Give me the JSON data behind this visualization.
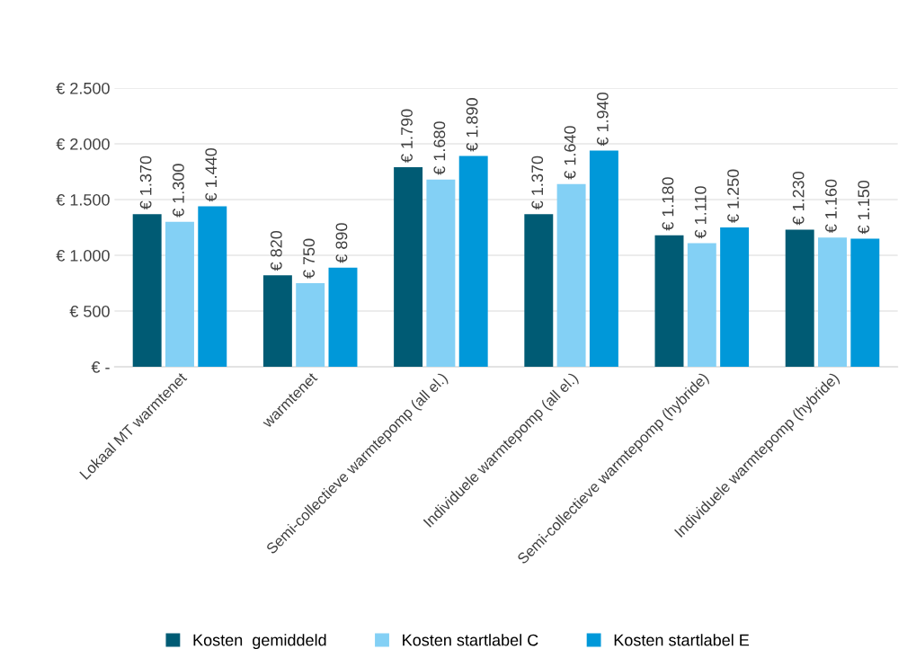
{
  "chart_data": {
    "type": "bar",
    "categories": [
      "Lokaal MT warmtenet",
      "warmtenet",
      "Semi-collectieve warmtepomp (all el.)",
      "Individuele warmtepomp (all el.)",
      "Semi-collectieve warmtepomp (hybride)",
      "Individuele warmtepomp (hybride)"
    ],
    "series": [
      {
        "name": "Kosten  gemiddeld",
        "color": "#005b74",
        "values": [
          1370,
          820,
          1790,
          1370,
          1180,
          1230
        ],
        "value_labels": [
          "€ 1.370",
          "€ 820",
          "€ 1.790",
          "€ 1.370",
          "€ 1.180",
          "€ 1.230"
        ]
      },
      {
        "name": "Kosten startlabel C",
        "color": "#83d0f5",
        "values": [
          1300,
          750,
          1680,
          1640,
          1110,
          1160
        ],
        "value_labels": [
          "€ 1.300",
          "€ 750",
          "€ 1.680",
          "€ 1.640",
          "€ 1.110",
          "€ 1.160"
        ]
      },
      {
        "name": "Kosten startlabel E",
        "color": "#0098d9",
        "values": [
          1440,
          890,
          1890,
          1940,
          1250,
          1150
        ],
        "value_labels": [
          "€ 1.440",
          "€ 890",
          "€ 1.890",
          "€ 1.940",
          "€ 1.250",
          "€ 1.150"
        ]
      }
    ],
    "ylim": [
      0,
      2500
    ],
    "yticks": [
      {
        "value": 0,
        "label": "€ -"
      },
      {
        "value": 500,
        "label": "€ 500"
      },
      {
        "value": 1000,
        "label": "€ 1.000"
      },
      {
        "value": 1500,
        "label": "€ 1.500"
      },
      {
        "value": 2000,
        "label": "€ 2.000"
      },
      {
        "value": 2500,
        "label": "€ 2.500"
      }
    ],
    "grid": "y",
    "legend": "bottom"
  }
}
